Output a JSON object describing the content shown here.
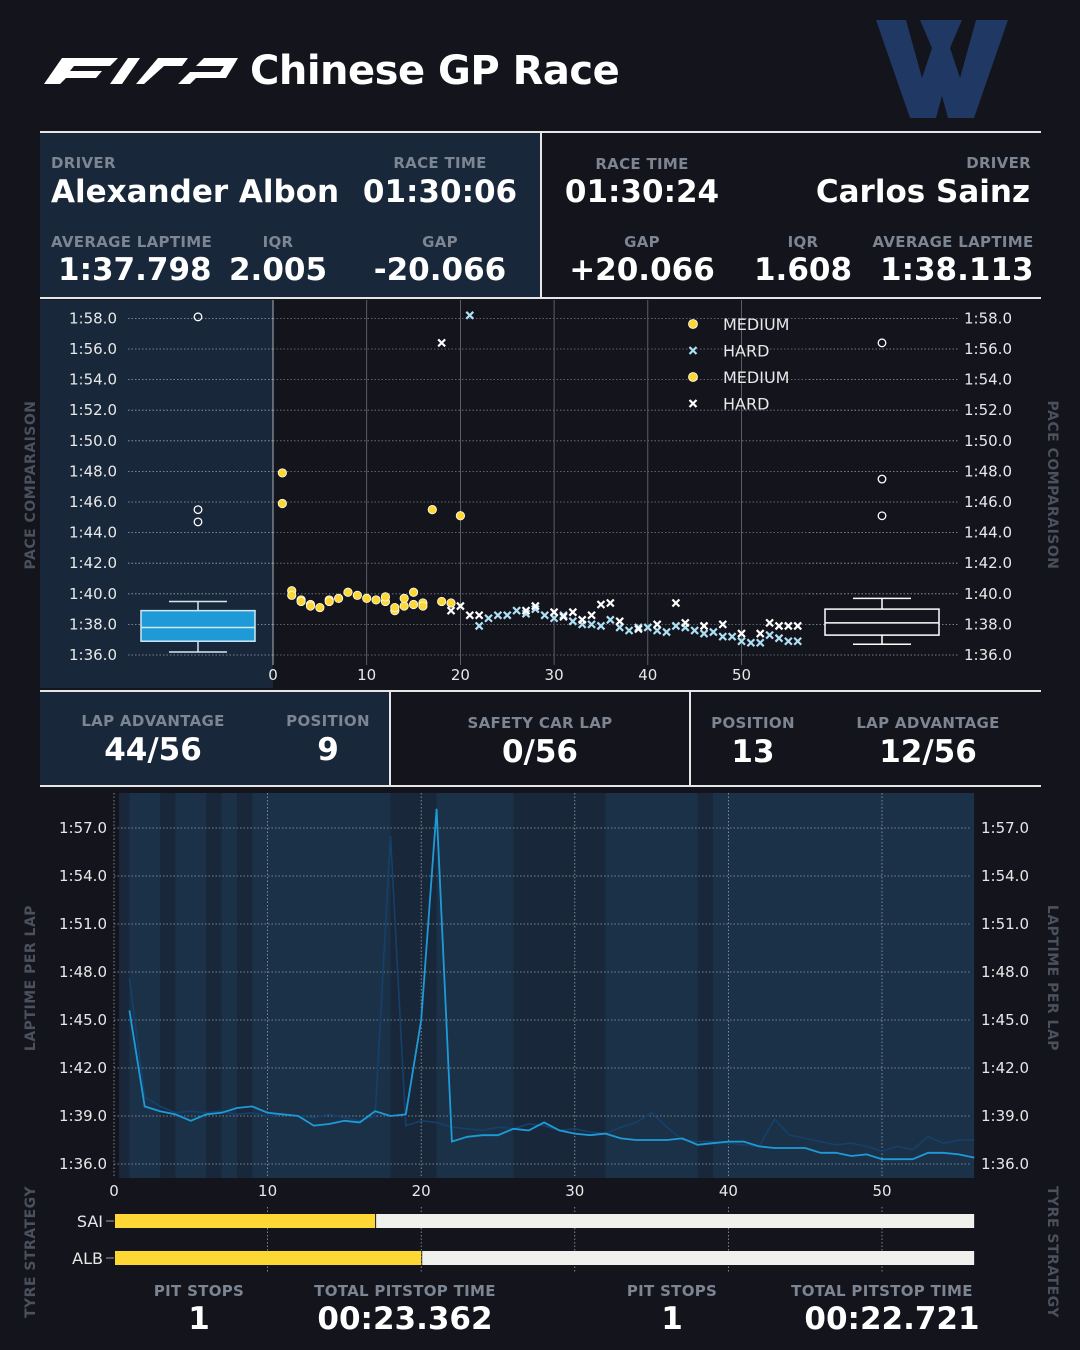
{
  "header": {
    "title": "Chinese GP Race"
  },
  "left_driver": {
    "driver_label": "DRIVER",
    "name": "Alexander Albon",
    "race_time_label": "RACE TIME",
    "race_time": "01:30:06",
    "avg_label": "AVERAGE LAPTIME",
    "avg_laptime": "1:37.798",
    "iqr_label": "IQR",
    "iqr": "2.005",
    "gap_label": "GAP",
    "gap": "-20.066",
    "lap_adv_label": "LAP ADVANTAGE",
    "lap_advantage": "44/56",
    "position_label": "POSITION",
    "position": "9",
    "pit_label": "PIT STOPS",
    "pit_stops": "1",
    "pit_time_label": "TOTAL PITSTOP TIME",
    "pit_time": "00:23.362"
  },
  "right_driver": {
    "driver_label": "DRIVER",
    "name": "Carlos Sainz",
    "race_time_label": "RACE TIME",
    "race_time": "01:30:24",
    "avg_label": "AVERAGE LAPTIME",
    "avg_laptime": "1:38.113",
    "iqr_label": "IQR",
    "iqr": "1.608",
    "gap_label": "GAP",
    "gap": "+20.066",
    "lap_adv_label": "LAP ADVANTAGE",
    "lap_advantage": "12/56",
    "position_label": "POSITION",
    "position": "13",
    "pit_label": "PIT STOPS",
    "pit_stops": "1",
    "pit_time_label": "TOTAL PITSTOP TIME",
    "pit_time": "00:22.721"
  },
  "safety_car": {
    "label": "SAFETY CAR LAP",
    "value": "0/56"
  },
  "side_labels": {
    "pace": "PACE COMPARAISON",
    "laptime": "LAPTIME PER LAP",
    "tyre": "TYRE STRATEGY"
  },
  "colors": {
    "albon": "#1e9bd7",
    "sainz": "#ffffff",
    "medium": "#fdd835",
    "hard": "#f0f0ec",
    "panel": "#18283a",
    "background": "#13141c"
  },
  "chart_data": [
    {
      "type": "scatter",
      "xlim": [
        0,
        57
      ],
      "x_ticks": [
        "0",
        "10",
        "20",
        "30",
        "40",
        "50"
      ],
      "y_ticks": [
        "1:36.0",
        "1:38.0",
        "1:40.0",
        "1:42.0",
        "1:44.0",
        "1:46.0",
        "1:48.0",
        "1:50.0",
        "1:52.0",
        "1:54.0",
        "1:56.0",
        "1:58.0"
      ],
      "ylim": [
        95.5,
        118.5
      ],
      "grid": true,
      "legend_position": "top-right",
      "legend": [
        {
          "label": "MEDIUM",
          "marker": "circle",
          "color": "#fdd835"
        },
        {
          "label": "HARD",
          "marker": "x",
          "color": "#aee0f5"
        },
        {
          "label": "MEDIUM",
          "marker": "circle",
          "color": "#fdd835"
        },
        {
          "label": "HARD",
          "marker": "x",
          "color": "#ffffff"
        }
      ],
      "series": [
        {
          "compound": "MEDIUM",
          "marker": "circle",
          "points": [
            [
              1,
              107.9
            ],
            [
              1,
              105.9
            ],
            [
              2,
              100.2
            ],
            [
              3,
              99.6
            ],
            [
              4,
              99.3
            ],
            [
              5,
              99.1
            ],
            [
              6,
              99.6
            ],
            [
              7,
              99.7
            ],
            [
              8,
              100.1
            ],
            [
              9,
              99.9
            ],
            [
              10,
              99.7
            ],
            [
              11,
              99.6
            ],
            [
              12,
              99.5
            ],
            [
              13,
              98.9
            ],
            [
              14,
              99.2
            ],
            [
              15,
              100.1
            ],
            [
              16,
              99.4
            ],
            [
              17,
              105.5
            ],
            [
              18,
              99.5
            ],
            [
              19,
              99.4
            ],
            [
              20,
              105.1
            ],
            [
              12,
              99.8
            ],
            [
              15,
              99.3
            ]
          ]
        },
        {
          "compound": "HARD",
          "marker": "x",
          "points": [
            [
              21,
              118.2
            ],
            [
              22,
              97.9
            ],
            [
              23,
              98.4
            ],
            [
              24,
              98.6
            ],
            [
              25,
              98.6
            ],
            [
              26,
              98.9
            ],
            [
              27,
              98.7
            ],
            [
              28,
              99.0
            ],
            [
              29,
              98.6
            ],
            [
              30,
              98.4
            ],
            [
              31,
              98.6
            ],
            [
              32,
              98.2
            ],
            [
              33,
              98.0
            ],
            [
              34,
              98.0
            ],
            [
              35,
              97.9
            ],
            [
              36,
              98.3
            ],
            [
              37,
              97.8
            ],
            [
              38,
              97.6
            ],
            [
              39,
              97.8
            ],
            [
              40,
              97.8
            ],
            [
              41,
              97.6
            ],
            [
              42,
              97.5
            ],
            [
              43,
              97.9
            ],
            [
              44,
              97.8
            ],
            [
              45,
              97.6
            ],
            [
              46,
              97.4
            ],
            [
              47,
              97.5
            ],
            [
              48,
              97.2
            ],
            [
              49,
              97.2
            ],
            [
              50,
              96.9
            ],
            [
              51,
              96.8
            ],
            [
              52,
              96.8
            ],
            [
              53,
              97.3
            ],
            [
              54,
              97.1
            ],
            [
              55,
              96.9
            ],
            [
              56,
              96.9
            ]
          ]
        },
        {
          "compound": "MEDIUM",
          "marker": "circle",
          "points": [
            [
              2,
              99.9
            ],
            [
              3,
              99.5
            ],
            [
              4,
              99.2
            ],
            [
              6,
              99.5
            ],
            [
              13,
              99.1
            ],
            [
              14,
              99.7
            ],
            [
              16,
              99.2
            ]
          ]
        },
        {
          "compound": "HARD",
          "marker": "x",
          "points": [
            [
              18,
              116.4
            ],
            [
              19,
              98.9
            ],
            [
              20,
              99.2
            ],
            [
              21,
              98.6
            ],
            [
              22,
              98.6
            ],
            [
              27,
              98.9
            ],
            [
              28,
              99.2
            ],
            [
              30,
              98.8
            ],
            [
              31,
              98.5
            ],
            [
              32,
              98.8
            ],
            [
              33,
              98.3
            ],
            [
              34,
              98.6
            ],
            [
              35,
              99.3
            ],
            [
              36,
              99.4
            ],
            [
              37,
              98.2
            ],
            [
              39,
              97.7
            ],
            [
              41,
              98.0
            ],
            [
              43,
              99.4
            ],
            [
              44,
              98.1
            ],
            [
              46,
              97.9
            ],
            [
              48,
              98.0
            ],
            [
              50,
              97.4
            ],
            [
              52,
              97.4
            ],
            [
              53,
              98.1
            ],
            [
              54,
              97.9
            ],
            [
              55,
              97.9
            ],
            [
              56,
              97.9
            ]
          ]
        }
      ],
      "boxplots": [
        {
          "driver": "Alexander Albon",
          "whisker_low": 96.2,
          "q1": 96.9,
          "median": 97.8,
          "q3": 98.9,
          "whisker_high": 99.5,
          "outliers": [
            118.1,
            105.5,
            104.7
          ]
        },
        {
          "driver": "Carlos Sainz",
          "whisker_low": 96.7,
          "q1": 97.3,
          "median": 98.1,
          "q3": 99.0,
          "whisker_high": 99.7,
          "outliers": [
            116.4,
            107.5,
            105.1
          ]
        }
      ]
    },
    {
      "type": "line",
      "xlim": [
        0,
        56
      ],
      "x_ticks": [
        "0",
        "10",
        "20",
        "30",
        "40",
        "50"
      ],
      "y_ticks": [
        "1:36.0",
        "1:39.0",
        "1:42.0",
        "1:45.0",
        "1:48.0",
        "1:51.0",
        "1:54.0",
        "1:57.0"
      ],
      "ylim": [
        95.5,
        118.5
      ],
      "grid": true,
      "albon_laps": [
        105.6,
        99.6,
        99.3,
        99.1,
        98.7,
        99.1,
        99.2,
        99.5,
        99.6,
        99.2,
        99.1,
        99.0,
        98.4,
        98.5,
        98.7,
        98.6,
        99.3,
        99.0,
        99.1,
        105.0,
        118.2,
        97.4,
        97.7,
        97.8,
        97.8,
        98.2,
        98.1,
        98.6,
        98.1,
        97.9,
        97.8,
        97.9,
        97.6,
        97.5,
        97.5,
        97.5,
        97.6,
        97.2,
        97.3,
        97.4,
        97.4,
        97.1,
        97.0,
        97.0,
        97.0,
        96.7,
        96.7,
        96.5,
        96.6,
        96.3,
        96.3,
        96.3,
        96.7,
        96.7,
        96.6,
        96.4
      ],
      "sainz_laps": [
        107.6,
        100.2,
        99.6,
        99.2,
        99.3,
        99.2,
        99.3,
        99.1,
        99.2,
        99.0,
        99.1,
        99.0,
        98.9,
        99.1,
        98.9,
        98.7,
        99.0,
        116.5,
        98.4,
        98.7,
        98.6,
        98.3,
        98.2,
        98.1,
        98.3,
        98.2,
        98.5,
        98.4,
        98.1,
        98.2,
        98.0,
        97.9,
        98.3,
        98.6,
        99.2,
        98.3,
        97.5,
        97.4,
        97.4,
        97.3,
        97.2,
        97.1,
        98.8,
        97.8,
        97.6,
        97.4,
        97.2,
        97.3,
        97.1,
        96.8,
        97.1,
        96.9,
        97.7,
        97.3,
        97.5,
        97.5
      ],
      "lap_advantage_bands": [
        [
          1,
          3
        ],
        [
          4,
          6
        ],
        [
          7,
          8
        ],
        [
          9,
          18
        ],
        [
          21,
          26
        ],
        [
          32,
          38
        ],
        [
          39,
          56
        ]
      ]
    },
    {
      "type": "bar",
      "title": "",
      "categories": [
        "SAI",
        "ALB"
      ],
      "xlim": [
        0,
        56
      ],
      "stints": [
        {
          "driver": "SAI",
          "stints": [
            {
              "compound": "MEDIUM",
              "start": 0,
              "end": 17
            },
            {
              "compound": "HARD",
              "start": 17,
              "end": 56
            }
          ]
        },
        {
          "driver": "ALB",
          "stints": [
            {
              "compound": "MEDIUM",
              "start": 0,
              "end": 20
            },
            {
              "compound": "HARD",
              "start": 20,
              "end": 56
            }
          ]
        }
      ]
    }
  ]
}
